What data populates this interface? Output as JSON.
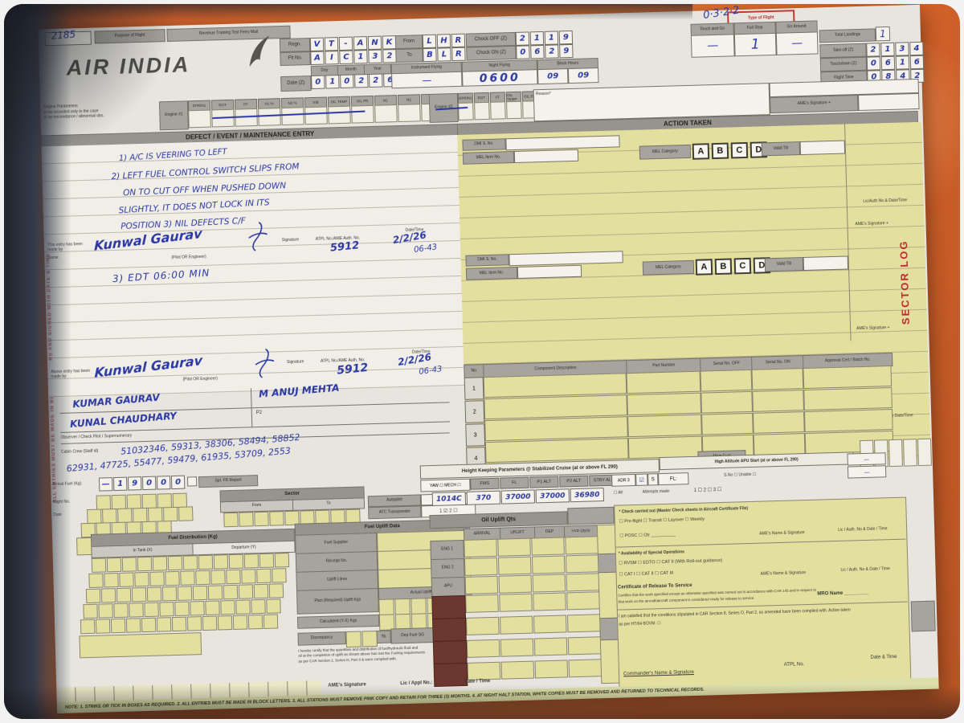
{
  "top": {
    "stock_no": "2185",
    "tab1": "Purpose of Flight",
    "tab2": "Revenue  Training  Test  Ferry  Mail",
    "tab3": "Type of Flight",
    "scribble": "0·3·2·2"
  },
  "brand": {
    "airline": "AIR INDIA"
  },
  "flight": {
    "regn_label": "Regn.",
    "regn": [
      "V",
      "T",
      "-",
      "A",
      "N",
      "K"
    ],
    "fltno_label": "Flt No.",
    "fltno": [
      "A",
      "I",
      "C",
      "1",
      "3",
      "2"
    ],
    "from_label": "From",
    "from": [
      "L",
      "H",
      "R"
    ],
    "to_label": "To",
    "to": [
      "B",
      "L",
      "R"
    ],
    "chock_off_label": "Chock OFF (Z)",
    "chock_off": [
      "2",
      "1",
      "1",
      "9"
    ],
    "chock_on_label": "Chock ON (Z)",
    "chock_on": [
      "0",
      "6",
      "2",
      "9"
    ],
    "date_label": "Date (Z)",
    "day_label": "Day",
    "month_label": "Month",
    "year_label": "Year",
    "date": [
      "0",
      "1",
      "0",
      "2",
      "2",
      "6"
    ],
    "instr_label": "Instrument Flying",
    "instr": "—",
    "night_label": "Night Flying",
    "night": "0600",
    "block_label": "Block Hours",
    "block_h": "09",
    "block_m": "09",
    "tng_label": "Touch and Go",
    "tng": "—",
    "fullstop_label": "Full Stop",
    "fullstop": "1",
    "goaround_label": "Go Around",
    "goaround": "—",
    "landings_label": "Total Landings",
    "landings": "1",
    "takeoff_label": "Take-off (Z)",
    "takeoff": [
      "2",
      "1",
      "3",
      "4"
    ],
    "touchdown_label": "Touchdown (Z)",
    "touchdown": [
      "0",
      "6",
      "1",
      "6"
    ],
    "flighttime_label": "Flight Time",
    "flighttime": [
      "0",
      "8",
      "4",
      "2"
    ],
    "duration_label": "Duration"
  },
  "engine": {
    "note1": "Engine Parameters",
    "note2": "to be recorded only in the case",
    "note3": "of an exceedance / abnormal obs.",
    "eng1": "Engine #1",
    "eng2": "Engine #2",
    "cols": [
      "EPR/N1",
      "EGT",
      "FF",
      "N1 %",
      "N2 %",
      "VIB",
      "OIL TEMP",
      "OIL PR",
      "N1",
      "N2",
      "N3"
    ],
    "cols2": [
      "EPR/N1",
      "EGT",
      "FF",
      "OIL TEMP",
      "OIL PR"
    ],
    "reason_label": "Reason*"
  },
  "sections": {
    "defect_header": "DEFECT / EVENT / MAINTENANCE ENTRY",
    "action_header": "ACTION TAKEN",
    "ame_sig": "AME's Signature +",
    "lic_auth": "Lic/Auth No & Date/Time",
    "sector_log": "SECTOR LOG",
    "left_note": "ALL ENTRIES MUST BE MADE IN BLOCK LETTERS AND SIGNED WITH DATE & TIME"
  },
  "defect": {
    "line1": "1) A/C IS VEERING TO LEFT",
    "line2": "2) LEFT FUEL CONTROL SWITCH SLIPS FROM",
    "line3": "ON TO CUT OFF WHEN PUSHED DOWN",
    "line4": "SLIGHTLY, IT DOES NOT LOCK IN ITS",
    "line5": "POSITION    3) NIL DEFECTS C/F",
    "edt": "3) EDT 06:00 MIN"
  },
  "sign1": {
    "made_by": "This entry has been made by",
    "name_label": "Name",
    "name": "Kunwal Gaurav",
    "role": "(Pilot OR Engineer)",
    "sig_label": "Signature",
    "atpl_label": "ATPL No./AME Auth. No.",
    "atpl": "5912",
    "dt_label": "Date/Time",
    "date": "2/2/26",
    "time": "06-43"
  },
  "sign2": {
    "made_by": "Above entry has been made by",
    "name": "Kunwal Gaurav",
    "atpl": "5912",
    "date": "2/2/26",
    "time": "06-43"
  },
  "mel": {
    "dmi_label": "DMI S. No.",
    "item_label": "MEL Item No.",
    "cat_label": "MEL Category",
    "cats": [
      "A",
      "B",
      "C",
      "D"
    ],
    "valid_label": "Valid Till"
  },
  "crew": {
    "row1_left": "KUMAR GAURAV",
    "row1_right": "M ANUJ MEHTA",
    "row2_left": "KUNAL CHAUDHARY",
    "p2_cell_label": "P2",
    "observer_label": "Observer / Check Pilot / Supernumerary",
    "cabin_label": "Cabin Crew (Staff id)",
    "cabin1": "51032346, 59313, 38306, 58494, 58852",
    "cabin2": "62931, 47725, 55477, 59479, 61935, 53709, 2553"
  },
  "component": {
    "no": "No.",
    "desc": "Component Description",
    "part": "Part Number",
    "ser_off": "Serial No. OFF",
    "ser_on": "Serial No. ON",
    "approval": "Approval Cert / Batch No.",
    "rows": [
      "1",
      "2",
      "3",
      "4"
    ],
    "main_fuel": "Main Fuel"
  },
  "fuelrow": {
    "label": "Arrival Fuel (Kg)",
    "boxes": [
      "—",
      "1",
      "9",
      "0",
      "0",
      "0"
    ],
    "spl": "Spl. FR Report",
    "flt_label": "Flight No.",
    "date_label": "Date"
  },
  "sector2": {
    "header": "Sector",
    "from": "From",
    "to": "To",
    "autopilot": "Autopilot",
    "atc": "ATC Transponder",
    "atc_val": "1 ☑  2 ☐"
  },
  "hkp": {
    "header": "Height Keeping Parameters @ Stabilized Cruise (at or above FL 290)",
    "apu_header": "High Altitude APU Start (at or above FL 290)",
    "c0": "YAW ☐  MECH ☐",
    "cols": [
      "FMS",
      "FL",
      "P1 ALT",
      "P2 ALT",
      "STBY ALT"
    ],
    "adr": "ADR 3",
    "adr_tick": "☑",
    "adr_s": "S",
    "fl2": "FL:",
    "vals": [
      "1014C",
      "370",
      "37000",
      "37000",
      "36980"
    ],
    "sno": "S.No ☐   Unable ☐",
    "alt_box": "☐ Alt",
    "attempts": "Attempts made",
    "att_vals": "1 ☐    2 ☐    3 ☐",
    "dash1": "—",
    "dash2": "—"
  },
  "fueldist": {
    "header": "Fuel Distribution (Kg)",
    "intank": "In Tank (X)",
    "dep": "Departure (Y)",
    "uplift_header": "Fuel Uplift Data",
    "supplier": "Fuel Supplier",
    "receipt": "Receipt No.",
    "litres": "Uplift Litres",
    "plan": "Plan (Required) Uplift Kgs",
    "actual": "Actual Uplift Kgs",
    "calc": "Calculated (Y-X) Kgs",
    "discrepancy": "Discrepancy",
    "pct": "%",
    "sg": "Dep Fuel SG",
    "cert1": "I hereby certify that the quantities and distribution of fuel/hydraulic fluid and",
    "cert2": "oil at the completion of uplift as shown above has met the Fueling requirements",
    "cert3": "as per CAR Section 2, Series N, Part II & were complied with.",
    "sig": "AME's Signature",
    "lic": "Lic / Appl No.:",
    "dt": "Date / Time"
  },
  "oil": {
    "header": "Oil Uplift Qts",
    "c1": "ARRIVAL",
    "c2": "UPLIFT",
    "c3": "DEP",
    "c4": "HYD Qty(s)",
    "r1": "ENG 1",
    "r2": "ENG 2",
    "r3": "APU"
  },
  "checks": {
    "carried": "* Check carried out (Master Check sheets in Aircraft Certificate File)",
    "boxes1": "☐ Pre-flight    ☐ Transit    ☐ Layover    ☐ Weekly",
    "boxes2": "☐ POSC    ☐ Otr __________",
    "ame": "AME's Name & Signature",
    "lic": "Lic / Auth. No & Date / Time",
    "special": "* Availability of Special Operations",
    "sp1": "☐ RVSM      ☐ EDTO      ☐ CAT II (With Roll-out guidance)",
    "sp2": "☐ CAT I      ☐ CAT II      ☐ CAT III",
    "crs": "Certificate of Release To Service",
    "crs1": "Certifies that the work specified except as otherwise specified was carried out in accordance with CAR 145 and in respect to",
    "crs2": "that work on the aircraft/aircraft component is considered ready for release to service.",
    "mro": "MRO Name _________",
    "satisfied1": "I am satisfied that the conditions stipulated in CAR Section 8, Series O, Part 2, as amended have been complied with. Action taken",
    "satisfied2": "as per HT/64 BOVM.    ☐",
    "commander": "Commander's Name & Signature",
    "atpl": "ATPL No.",
    "dt": "Date & Time"
  },
  "footer": {
    "note": "NOTE: 1. STRIKE OR TICK IN BOXES AS REQUIRED.   2. ALL ENTRIES MUST BE MADE IN BLOCK LETTERS.   3. ALL STATIONS MUST REMOVE PINK COPY AND RETAIN FOR THREE (3) MONTHS.   4. AT NIGHT HALT STATION, WHITE COPIES MUST BE REMOVED AND RETURNED TO TECHNICAL RECORDS."
  }
}
